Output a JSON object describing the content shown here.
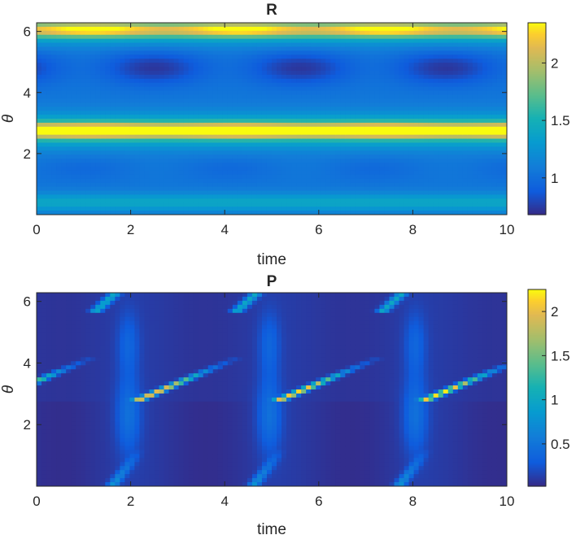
{
  "chart_data": [
    {
      "type": "heatmap",
      "title": "R",
      "xlabel": "time",
      "ylabel": "θ",
      "xlim": [
        0,
        10
      ],
      "ylim": [
        0,
        6.283
      ],
      "xticks": [
        0,
        2,
        4,
        6,
        8,
        10
      ],
      "yticks": [
        2,
        4,
        6
      ],
      "xtick_labels": [
        "0",
        "2",
        "4",
        "6",
        "8",
        "10"
      ],
      "ytick_labels": [
        "2",
        "4",
        "6"
      ],
      "colormap": "parula",
      "clim": [
        0.68,
        2.35
      ],
      "colorbar": {
        "ticks": [
          1,
          1.5,
          2
        ],
        "labels": [
          "1",
          "1.5",
          "2"
        ]
      },
      "features": {
        "bright_bands_theta": [
          2.75,
          6.05
        ],
        "dark_band_theta": 4.8,
        "dark_spot_times": [
          2.5,
          5.5,
          8.6
        ],
        "light_spot_times": [
          1.2,
          4.3,
          7.3
        ],
        "period": 3.1,
        "band_max": 2.3,
        "dark_min": 0.7
      }
    },
    {
      "type": "heatmap",
      "title": "P",
      "xlabel": "time",
      "ylabel": "θ",
      "xlim": [
        0,
        10
      ],
      "ylim": [
        0,
        6.283
      ],
      "xticks": [
        0,
        2,
        4,
        6,
        8,
        10
      ],
      "yticks": [
        2,
        4,
        6
      ],
      "xtick_labels": [
        "0",
        "2",
        "4",
        "6",
        "8",
        "10"
      ],
      "ytick_labels": [
        "2",
        "4",
        "6"
      ],
      "colormap": "parula",
      "clim": [
        0.02,
        2.25
      ],
      "colorbar": {
        "ticks": [
          0.5,
          1,
          1.5,
          2
        ],
        "labels": [
          "0.5",
          "1",
          "1.5",
          "2"
        ]
      },
      "features": {
        "streaks": [
          {
            "t_start": 2.1,
            "theta_start": 2.75,
            "t_end": 3.8,
            "theta_end": 3.9,
            "peak": 2.2
          },
          {
            "t_start": 5.1,
            "theta_start": 2.75,
            "t_end": 6.9,
            "theta_end": 3.9,
            "peak": 2.2
          },
          {
            "t_start": 8.2,
            "theta_start": 2.75,
            "t_end": 10.0,
            "theta_end": 3.9,
            "peak": 2.2
          }
        ],
        "discontinuity_theta": 2.72,
        "period": 3.1,
        "background": 0.12
      }
    }
  ]
}
